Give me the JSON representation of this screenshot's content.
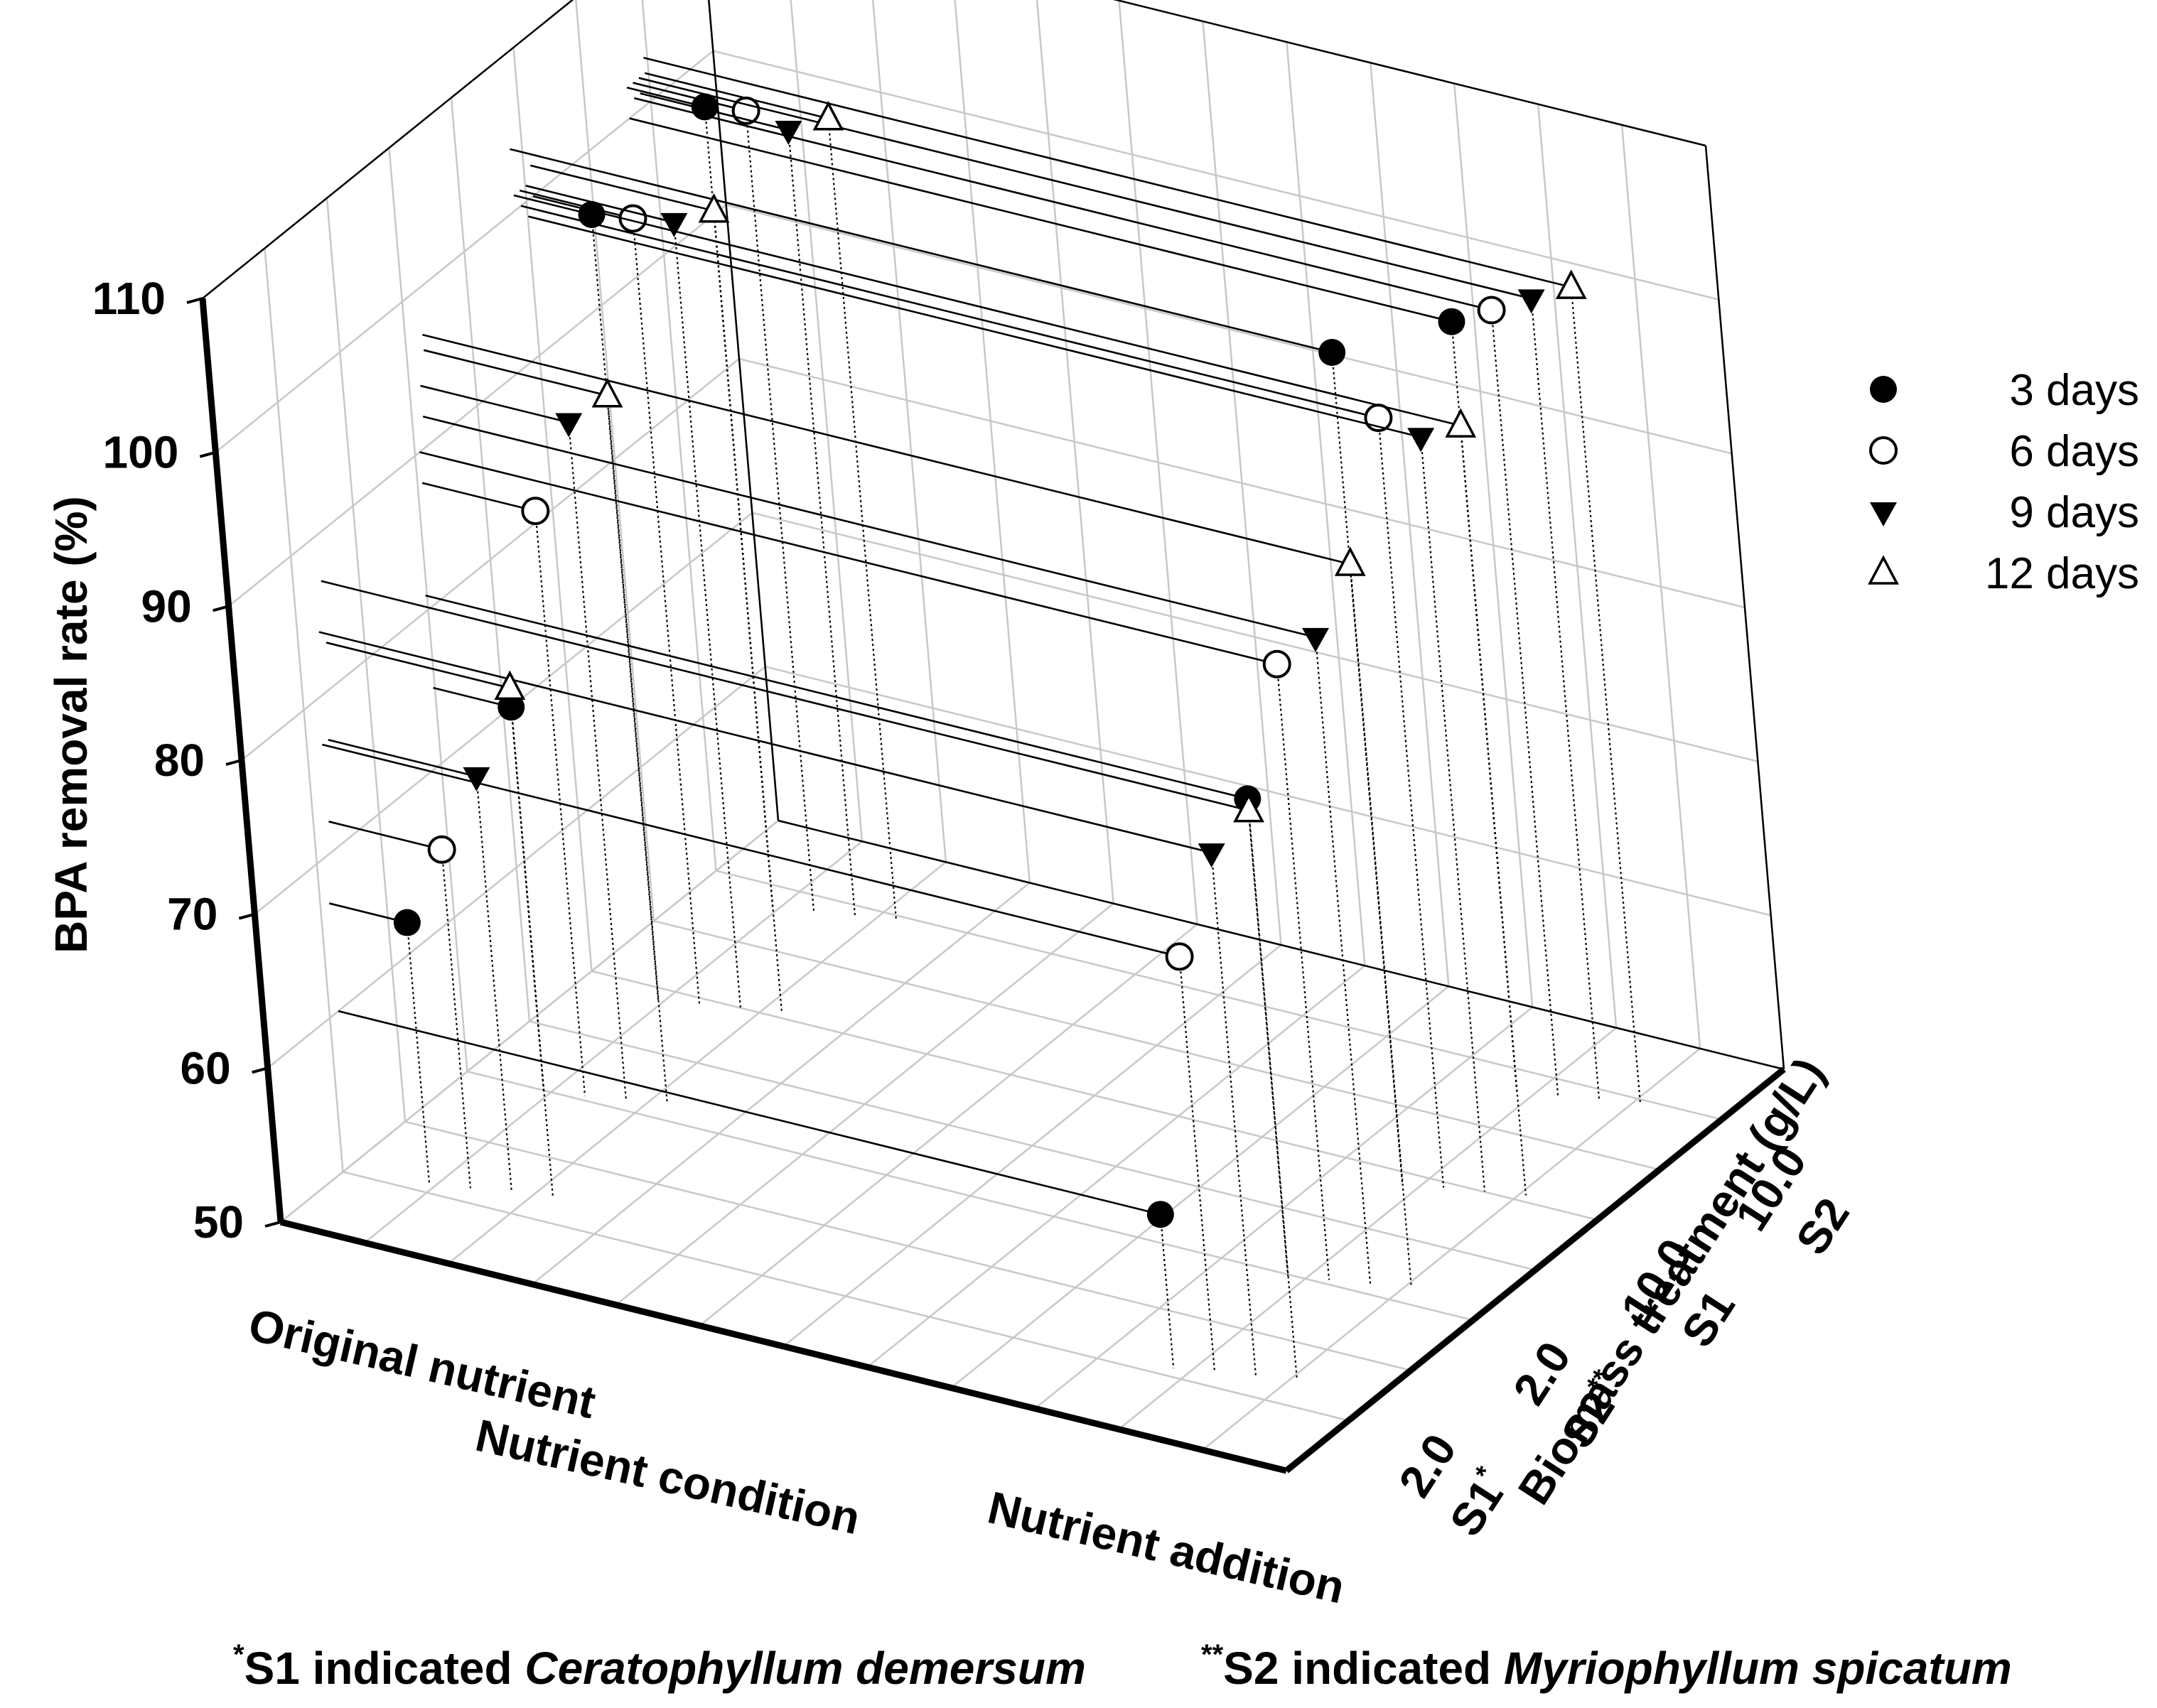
{
  "chart_data": {
    "type": "scatter",
    "subtype": "3d-scatter-with-drop-lines",
    "zlabel": "BPA removal rate (%)",
    "xlabel": "Nutrient condition",
    "ylabel": "Biomass treatment (g/L)",
    "z_ticks": [
      "50",
      "60",
      "70",
      "80",
      "90",
      "100",
      "110"
    ],
    "zlim": [
      50,
      110
    ],
    "x_categories": [
      "Original nutrient",
      "Nutrient addition"
    ],
    "y_categories": [
      {
        "code": "S1",
        "mark": "*",
        "dose": "2.0"
      },
      {
        "code": "S2",
        "mark": "**",
        "dose": "2.0"
      },
      {
        "code": "S1",
        "mark": "",
        "dose": "10.0"
      },
      {
        "code": "S2",
        "mark": "",
        "dose": "10.0"
      }
    ],
    "legend_position": "right",
    "grid": true,
    "series": [
      {
        "name": "3  days",
        "marker": "filled-circle",
        "points": [
          {
            "x": "Original nutrient",
            "y": 0,
            "z": 67
          },
          {
            "x": "Original nutrient",
            "y": 1,
            "z": 75
          },
          {
            "x": "Original nutrient",
            "y": 2,
            "z": 101
          },
          {
            "x": "Original nutrient",
            "y": 3,
            "z": 102
          },
          {
            "x": "Nutrient addition",
            "y": 0,
            "z": 60
          },
          {
            "x": "Nutrient addition",
            "y": 1,
            "z": 81
          },
          {
            "x": "Nutrient addition",
            "y": 2,
            "z": 104
          },
          {
            "x": "Nutrient addition",
            "y": 3,
            "z": 100
          }
        ]
      },
      {
        "name": "6  days",
        "marker": "open-circle",
        "points": [
          {
            "x": "Original nutrient",
            "y": 0,
            "z": 72
          },
          {
            "x": "Original nutrient",
            "y": 1,
            "z": 88
          },
          {
            "x": "Original nutrient",
            "y": 2,
            "z": 101
          },
          {
            "x": "Original nutrient",
            "y": 3,
            "z": 102
          },
          {
            "x": "Nutrient addition",
            "y": 0,
            "z": 77
          },
          {
            "x": "Nutrient addition",
            "y": 1,
            "z": 90
          },
          {
            "x": "Nutrient addition",
            "y": 2,
            "z": 100
          },
          {
            "x": "Nutrient addition",
            "y": 3,
            "z": 101
          }
        ]
      },
      {
        "name": "9  days",
        "marker": "filled-down-triangle",
        "points": [
          {
            "x": "Original nutrient",
            "y": 0,
            "z": 77
          },
          {
            "x": "Original nutrient",
            "y": 1,
            "z": 94
          },
          {
            "x": "Original nutrient",
            "y": 2,
            "z": 101
          },
          {
            "x": "Original nutrient",
            "y": 3,
            "z": 101
          },
          {
            "x": "Nutrient addition",
            "y": 0,
            "z": 84
          },
          {
            "x": "Nutrient addition",
            "y": 1,
            "z": 92
          },
          {
            "x": "Nutrient addition",
            "y": 2,
            "z": 99
          },
          {
            "x": "Nutrient addition",
            "y": 3,
            "z": 102
          }
        ]
      },
      {
        "name": "12  days",
        "marker": "open-up-triangle",
        "points": [
          {
            "x": "Original nutrient",
            "y": 0,
            "z": 83
          },
          {
            "x": "Original nutrient",
            "y": 1,
            "z": 96
          },
          {
            "x": "Original nutrient",
            "y": 2,
            "z": 102
          },
          {
            "x": "Original nutrient",
            "y": 3,
            "z": 102
          },
          {
            "x": "Nutrient addition",
            "y": 0,
            "z": 87
          },
          {
            "x": "Nutrient addition",
            "y": 1,
            "z": 97
          },
          {
            "x": "Nutrient addition",
            "y": 2,
            "z": 100
          },
          {
            "x": "Nutrient addition",
            "y": 3,
            "z": 103
          }
        ]
      }
    ]
  },
  "footnotes": {
    "s1": {
      "mark": "*",
      "prefix": "S1 indicated ",
      "species_genus": "Ceratophyllum",
      "species_rest": " demersum"
    },
    "s2": {
      "mark": "**",
      "prefix": "S2 indicated ",
      "species_genus": "Myriophyllum",
      "species_rest": " spicatum"
    }
  }
}
